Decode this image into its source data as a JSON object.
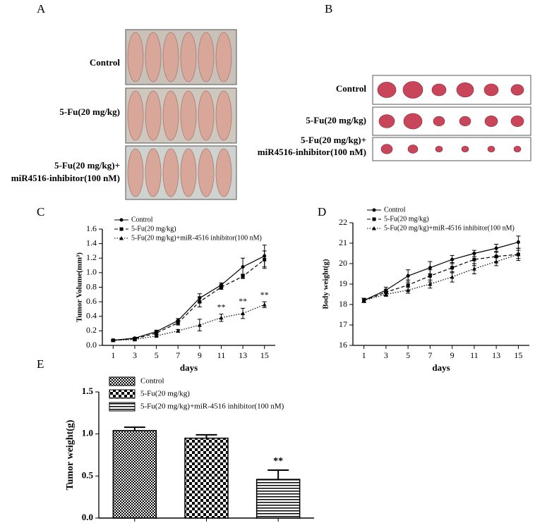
{
  "panel_A": {
    "label": "A",
    "rows": [
      [
        "Control"
      ],
      [
        "5-Fu(20 mg/kg)"
      ],
      [
        "5-Fu(20 mg/kg)+",
        "miR4516-inhibitor(100 nM)"
      ]
    ]
  },
  "panel_B": {
    "label": "B",
    "rows": [
      [
        "Control"
      ],
      [
        "5-Fu(20 mg/kg)"
      ],
      [
        "5-Fu(20 mg/kg)+",
        "miR4516-inhibitor(100 nM)"
      ]
    ]
  },
  "chart_data": [
    {
      "type": "line",
      "panel_label": "C",
      "x_label": "days",
      "y_label": "Tumor Volume(mm³)",
      "x": [
        1,
        3,
        5,
        7,
        9,
        11,
        13,
        15
      ],
      "xlim": [
        0,
        16
      ],
      "xticks": [
        1,
        3,
        5,
        7,
        9,
        11,
        13,
        15
      ],
      "ylim": [
        0,
        1.6
      ],
      "yticks": [
        {
          "value": 0,
          "label": "0.0"
        },
        {
          "value": 0.2,
          "label": "0.2"
        },
        {
          "value": 0.4,
          "label": "0.4"
        },
        {
          "value": 0.6,
          "label": "0.6"
        },
        {
          "value": 0.8,
          "label": "0.8"
        },
        {
          "value": 1,
          "label": "1.0"
        },
        {
          "value": 1.2,
          "label": "1.2"
        },
        {
          "value": 1.4,
          "label": "1.4"
        },
        {
          "value": 1.6,
          "label": "1.6"
        }
      ],
      "series": [
        {
          "name": "Control",
          "color": "#000000",
          "dash": "solid",
          "marker": "circle",
          "values": [
            0.07,
            0.1,
            0.19,
            0.34,
            0.65,
            0.83,
            1.08,
            1.23
          ],
          "errors": [
            0.01,
            0.01,
            0.02,
            0.03,
            0.06,
            0.03,
            0.12,
            0.15
          ]
        },
        {
          "name": "5-Fu(20 mg/kg)",
          "color": "#000000",
          "dash": "dashed",
          "marker": "square",
          "values": [
            0.07,
            0.09,
            0.17,
            0.31,
            0.6,
            0.8,
            0.95,
            1.18
          ],
          "errors": [
            0.01,
            0.01,
            0.02,
            0.03,
            0.07,
            0.03,
            0.03,
            0.12
          ]
        },
        {
          "name": "5-Fu(20 mg/kg)+miR-4516 inhibitor(100 nM)",
          "color": "#000000",
          "dash": "dotted",
          "marker": "triangle",
          "values": [
            0.07,
            0.08,
            0.13,
            0.2,
            0.28,
            0.38,
            0.44,
            0.56
          ],
          "errors": [
            0.01,
            0.01,
            0.01,
            0.02,
            0.08,
            0.05,
            0.07,
            0.04
          ],
          "annotations": [
            null,
            null,
            null,
            null,
            null,
            "**",
            "**",
            "**"
          ]
        }
      ]
    },
    {
      "type": "line",
      "panel_label": "D",
      "x_label": "days",
      "y_label": "Body weight(g)",
      "x": [
        1,
        3,
        5,
        7,
        9,
        11,
        13,
        15
      ],
      "xlim": [
        0,
        16
      ],
      "xticks": [
        1,
        3,
        5,
        7,
        9,
        11,
        13,
        15
      ],
      "ylim": [
        16,
        22
      ],
      "yticks": [
        16,
        17,
        18,
        19,
        20,
        21,
        22
      ],
      "series": [
        {
          "name": "Control",
          "color": "#000000",
          "dash": "solid",
          "marker": "circle",
          "values": [
            18.2,
            18.7,
            19.4,
            19.8,
            20.2,
            20.5,
            20.75,
            21.05
          ],
          "errors": [
            0.1,
            0.15,
            0.3,
            0.3,
            0.2,
            0.15,
            0.2,
            0.3
          ]
        },
        {
          "name": "5-Fu(20 mg/kg)",
          "color": "#000000",
          "dash": "dashed",
          "marker": "square",
          "values": [
            18.2,
            18.6,
            18.95,
            19.4,
            19.8,
            20.2,
            20.35,
            20.45
          ],
          "errors": [
            0.1,
            0.15,
            0.25,
            0.3,
            0.25,
            0.3,
            0.25,
            0.3
          ]
        },
        {
          "name": "5-Fu(20 mg/kg)+miR-4516 inhibitor(100 nM)",
          "color": "#000000",
          "dash": "dotted",
          "marker": "triangle",
          "values": [
            18.2,
            18.5,
            18.7,
            19.0,
            19.35,
            19.75,
            20.1,
            20.45
          ],
          "errors": [
            0.1,
            0.1,
            0.15,
            0.2,
            0.25,
            0.25,
            0.2,
            0.2
          ]
        }
      ]
    },
    {
      "type": "bar",
      "panel_label": "E",
      "y_label": "Tumor weight(g)",
      "ylim": [
        0,
        1.5
      ],
      "yticks": [
        {
          "value": 0,
          "label": "0.0"
        },
        {
          "value": 0.5,
          "label": "0.5"
        },
        {
          "value": 1,
          "label": "1.0"
        },
        {
          "value": 1.5,
          "label": "1.5"
        }
      ],
      "series": [
        {
          "name": "Control",
          "pattern": "checker-fine",
          "values": [
            1.04
          ],
          "errors": [
            0.04
          ]
        },
        {
          "name": "5-Fu(20 mg/kg)",
          "pattern": "checker",
          "values": [
            0.95
          ],
          "errors": [
            0.04
          ]
        },
        {
          "name": "5-Fu(20 mg/kg)+miR-4516 inhibitor(100 nM)",
          "pattern": "horizontal",
          "values": [
            0.46
          ],
          "errors": [
            0.11
          ],
          "annotations": [
            "**"
          ]
        }
      ]
    }
  ]
}
